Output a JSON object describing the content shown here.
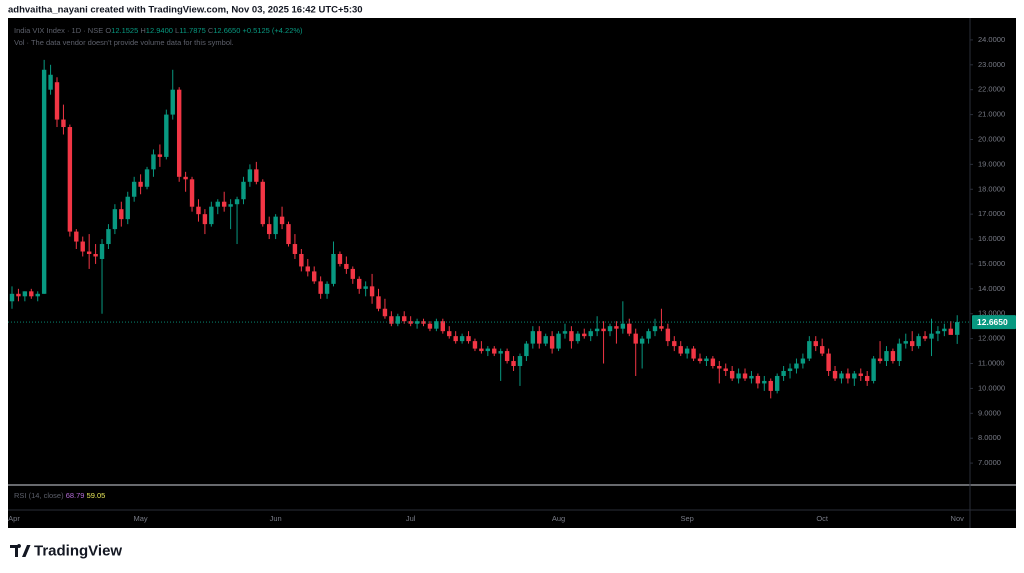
{
  "header": "adhvaitha_nayani created with TradingView.com, Nov 03, 2025 16:42 UTC+5:30",
  "footer": {
    "brand": "TradingView"
  },
  "chart_data": {
    "type": "candlestick",
    "legend": {
      "symbol": "India VIX Index · 1D · NSE",
      "fields": [
        {
          "key": "O",
          "label": "12.1525"
        },
        {
          "key": "H",
          "label": "12.9400"
        },
        {
          "key": "L",
          "label": "11.7875"
        },
        {
          "key": "C",
          "label": "12.6650"
        }
      ],
      "change": "+0.5125 (+4.22%)",
      "volume_note": "Vol · The data vendor doesn't provide volume data for this symbol."
    },
    "up_color": "#089981",
    "down_color": "#f23645",
    "price_tag": {
      "value": 12.665,
      "label": "12.6650"
    },
    "ylim": [
      6.12,
      24.88
    ],
    "yticks": [
      {
        "value": 24,
        "label": "24.0000"
      },
      {
        "value": 23,
        "label": "23.0000"
      },
      {
        "value": 22,
        "label": "22.0000"
      },
      {
        "value": 21,
        "label": "21.0000"
      },
      {
        "value": 20,
        "label": "20.0000"
      },
      {
        "value": 19,
        "label": "19.0000"
      },
      {
        "value": 18,
        "label": "18.0000"
      },
      {
        "value": 17,
        "label": "17.0000"
      },
      {
        "value": 16,
        "label": "16.0000"
      },
      {
        "value": 15,
        "label": "15.0000"
      },
      {
        "value": 14,
        "label": "14.0000"
      },
      {
        "value": 13,
        "label": "13.0000"
      },
      {
        "value": 12,
        "label": "12.0000"
      },
      {
        "value": 11,
        "label": "11.0000"
      },
      {
        "value": 10,
        "label": "10.0000"
      },
      {
        "value": 9,
        "label": "9.0000"
      },
      {
        "value": 8,
        "label": "8.0000"
      },
      {
        "value": 7,
        "label": "7.0000"
      }
    ],
    "grid": false,
    "rsi": {
      "title": "RSI (14, close)",
      "values": [
        68.79,
        59.05
      ],
      "colors": [
        "#b36bd6",
        "#e8e85a"
      ]
    },
    "categories": [
      "Apr",
      null,
      null,
      null,
      null,
      null,
      null,
      null,
      null,
      null,
      null,
      null,
      null,
      null,
      null,
      null,
      null,
      null,
      null,
      null,
      "May",
      null,
      null,
      null,
      null,
      null,
      null,
      null,
      null,
      null,
      null,
      null,
      null,
      null,
      null,
      null,
      null,
      null,
      null,
      null,
      null,
      "Jun",
      null,
      null,
      null,
      null,
      null,
      null,
      null,
      null,
      null,
      null,
      null,
      null,
      null,
      null,
      null,
      null,
      null,
      null,
      null,
      null,
      "Jul",
      null,
      null,
      null,
      null,
      null,
      null,
      null,
      null,
      null,
      null,
      null,
      null,
      null,
      null,
      null,
      null,
      null,
      null,
      null,
      null,
      null,
      null,
      "Aug",
      null,
      null,
      null,
      null,
      null,
      null,
      null,
      null,
      null,
      null,
      null,
      null,
      null,
      null,
      null,
      null,
      null,
      null,
      null,
      "Sep",
      null,
      null,
      null,
      null,
      null,
      null,
      null,
      null,
      null,
      null,
      null,
      null,
      null,
      null,
      null,
      null,
      null,
      null,
      null,
      null,
      "Oct",
      null,
      null,
      null,
      null,
      null,
      null,
      null,
      null,
      null,
      null,
      null,
      null,
      null,
      null,
      null,
      null,
      null,
      null,
      null,
      null,
      "Nov"
    ],
    "ohlc": [
      [
        13.5,
        14.1,
        13.2,
        13.8
      ],
      [
        13.8,
        14.0,
        13.5,
        13.7
      ],
      [
        13.7,
        13.9,
        13.5,
        13.9
      ],
      [
        13.9,
        14.0,
        13.6,
        13.7
      ],
      [
        13.7,
        13.9,
        13.5,
        13.8
      ],
      [
        13.8,
        23.2,
        13.8,
        22.8
      ],
      [
        22.0,
        23.0,
        21.8,
        22.6
      ],
      [
        22.3,
        22.5,
        20.5,
        20.8
      ],
      [
        20.8,
        21.4,
        20.2,
        20.5
      ],
      [
        20.5,
        20.6,
        16.1,
        16.3
      ],
      [
        16.3,
        16.4,
        15.6,
        15.9
      ],
      [
        15.9,
        16.1,
        15.3,
        15.5
      ],
      [
        15.5,
        16.2,
        14.8,
        15.4
      ],
      [
        15.4,
        15.8,
        15.0,
        15.3
      ],
      [
        15.2,
        16.0,
        13.0,
        15.8
      ],
      [
        15.8,
        16.6,
        15.6,
        16.4
      ],
      [
        16.4,
        17.4,
        16.2,
        17.2
      ],
      [
        17.2,
        17.5,
        16.5,
        16.8
      ],
      [
        16.8,
        17.9,
        16.6,
        17.7
      ],
      [
        17.7,
        18.5,
        17.5,
        18.3
      ],
      [
        18.3,
        18.6,
        17.8,
        18.1
      ],
      [
        18.1,
        18.9,
        18.0,
        18.8
      ],
      [
        18.8,
        19.6,
        18.5,
        19.4
      ],
      [
        19.4,
        19.8,
        18.9,
        19.3
      ],
      [
        19.3,
        21.2,
        19.2,
        21.0
      ],
      [
        21.0,
        22.8,
        20.8,
        22.0
      ],
      [
        22.0,
        22.1,
        18.3,
        18.5
      ],
      [
        18.5,
        18.7,
        17.9,
        18.4
      ],
      [
        18.4,
        18.5,
        17.1,
        17.3
      ],
      [
        17.3,
        17.6,
        16.7,
        17.0
      ],
      [
        17.0,
        17.2,
        16.2,
        16.6
      ],
      [
        16.6,
        17.5,
        16.5,
        17.3
      ],
      [
        17.3,
        17.6,
        17.0,
        17.5
      ],
      [
        17.5,
        17.9,
        17.1,
        17.3
      ],
      [
        17.3,
        17.6,
        16.4,
        17.4
      ],
      [
        17.4,
        17.7,
        15.8,
        17.6
      ],
      [
        17.6,
        18.5,
        17.4,
        18.3
      ],
      [
        18.3,
        19.0,
        18.1,
        18.8
      ],
      [
        18.8,
        19.1,
        18.2,
        18.3
      ],
      [
        18.3,
        18.4,
        16.5,
        16.6
      ],
      [
        16.6,
        16.9,
        16.0,
        16.2
      ],
      [
        16.2,
        17.0,
        16.0,
        16.9
      ],
      [
        16.9,
        17.3,
        16.4,
        16.6
      ],
      [
        16.6,
        16.7,
        15.7,
        15.8
      ],
      [
        15.8,
        16.2,
        15.2,
        15.4
      ],
      [
        15.4,
        15.6,
        14.7,
        14.9
      ],
      [
        14.9,
        15.2,
        14.5,
        14.7
      ],
      [
        14.7,
        14.9,
        14.2,
        14.3
      ],
      [
        14.3,
        14.5,
        13.6,
        13.8
      ],
      [
        13.8,
        14.3,
        13.6,
        14.2
      ],
      [
        14.2,
        15.9,
        14.1,
        15.4
      ],
      [
        15.4,
        15.5,
        14.9,
        15.0
      ],
      [
        15.0,
        15.3,
        14.6,
        14.8
      ],
      [
        14.8,
        14.9,
        14.2,
        14.4
      ],
      [
        14.4,
        14.5,
        13.8,
        14.0
      ],
      [
        14.0,
        14.3,
        13.7,
        14.1
      ],
      [
        14.1,
        14.6,
        13.4,
        13.7
      ],
      [
        13.7,
        14.0,
        13.1,
        13.2
      ],
      [
        13.2,
        13.6,
        12.8,
        12.9
      ],
      [
        12.9,
        13.1,
        12.5,
        12.6
      ],
      [
        12.6,
        13.0,
        12.5,
        12.9
      ],
      [
        12.9,
        13.1,
        12.6,
        12.7
      ],
      [
        12.7,
        12.9,
        12.5,
        12.6
      ],
      [
        12.6,
        12.8,
        12.4,
        12.7
      ],
      [
        12.7,
        12.8,
        12.5,
        12.6
      ],
      [
        12.6,
        12.7,
        12.3,
        12.4
      ],
      [
        12.4,
        12.8,
        12.3,
        12.7
      ],
      [
        12.7,
        12.8,
        12.2,
        12.3
      ],
      [
        12.3,
        12.5,
        12.0,
        12.1
      ],
      [
        12.1,
        12.3,
        11.8,
        11.9
      ],
      [
        11.9,
        12.2,
        11.8,
        12.1
      ],
      [
        12.1,
        12.3,
        11.8,
        11.9
      ],
      [
        11.9,
        12.0,
        11.5,
        11.6
      ],
      [
        11.6,
        11.9,
        11.4,
        11.5
      ],
      [
        11.5,
        11.7,
        11.3,
        11.6
      ],
      [
        11.6,
        11.7,
        11.3,
        11.4
      ],
      [
        11.4,
        11.6,
        10.3,
        11.5
      ],
      [
        11.5,
        11.6,
        11.0,
        11.1
      ],
      [
        11.1,
        11.3,
        10.7,
        10.9
      ],
      [
        10.9,
        11.4,
        10.1,
        11.3
      ],
      [
        11.3,
        11.9,
        11.1,
        11.8
      ],
      [
        11.8,
        12.5,
        11.6,
        12.3
      ],
      [
        12.3,
        12.5,
        11.6,
        11.8
      ],
      [
        11.8,
        12.2,
        11.7,
        12.1
      ],
      [
        12.1,
        12.3,
        11.4,
        11.6
      ],
      [
        11.6,
        12.3,
        11.5,
        12.2
      ],
      [
        12.2,
        12.6,
        12.0,
        12.3
      ],
      [
        12.3,
        12.5,
        11.6,
        11.9
      ],
      [
        11.9,
        12.3,
        11.8,
        12.2
      ],
      [
        12.2,
        12.4,
        12.0,
        12.1
      ],
      [
        12.1,
        12.4,
        11.9,
        12.3
      ],
      [
        12.3,
        12.9,
        12.1,
        12.4
      ],
      [
        12.4,
        12.7,
        11.0,
        12.3
      ],
      [
        12.3,
        12.6,
        12.1,
        12.5
      ],
      [
        12.5,
        12.7,
        11.8,
        12.4
      ],
      [
        12.4,
        13.5,
        12.2,
        12.6
      ],
      [
        12.6,
        12.8,
        12.1,
        12.2
      ],
      [
        12.2,
        12.4,
        10.5,
        11.8
      ],
      [
        11.8,
        12.1,
        10.8,
        12.0
      ],
      [
        12.0,
        12.4,
        11.8,
        12.3
      ],
      [
        12.3,
        12.8,
        12.1,
        12.5
      ],
      [
        12.5,
        13.2,
        12.3,
        12.4
      ],
      [
        12.4,
        12.6,
        11.7,
        11.9
      ],
      [
        11.9,
        12.1,
        11.5,
        11.7
      ],
      [
        11.7,
        11.9,
        11.3,
        11.4
      ],
      [
        11.4,
        11.7,
        11.2,
        11.6
      ],
      [
        11.6,
        11.7,
        11.1,
        11.2
      ],
      [
        11.2,
        11.4,
        11.0,
        11.1
      ],
      [
        11.1,
        11.3,
        10.9,
        11.2
      ],
      [
        11.2,
        11.3,
        10.8,
        10.9
      ],
      [
        10.9,
        11.1,
        10.2,
        10.8
      ],
      [
        10.8,
        11.0,
        10.5,
        10.7
      ],
      [
        10.7,
        10.9,
        10.3,
        10.4
      ],
      [
        10.4,
        10.8,
        10.2,
        10.6
      ],
      [
        10.6,
        10.8,
        10.3,
        10.4
      ],
      [
        10.4,
        10.7,
        10.2,
        10.5
      ],
      [
        10.5,
        10.6,
        10.0,
        10.2
      ],
      [
        10.2,
        10.5,
        9.9,
        10.3
      ],
      [
        10.3,
        10.4,
        9.6,
        9.9
      ],
      [
        9.9,
        10.6,
        9.8,
        10.5
      ],
      [
        10.5,
        10.9,
        10.3,
        10.7
      ],
      [
        10.7,
        11.0,
        10.4,
        10.8
      ],
      [
        10.8,
        11.2,
        10.6,
        11.0
      ],
      [
        11.0,
        11.4,
        10.8,
        11.2
      ],
      [
        11.2,
        12.1,
        11.1,
        11.9
      ],
      [
        11.9,
        12.1,
        11.5,
        11.7
      ],
      [
        11.7,
        12.0,
        11.3,
        11.4
      ],
      [
        11.4,
        11.6,
        10.5,
        10.7
      ],
      [
        10.7,
        10.9,
        10.3,
        10.4
      ],
      [
        10.4,
        10.7,
        10.2,
        10.6
      ],
      [
        10.6,
        10.8,
        10.2,
        10.4
      ],
      [
        10.4,
        10.7,
        10.1,
        10.6
      ],
      [
        10.6,
        10.8,
        10.3,
        10.5
      ],
      [
        10.5,
        10.7,
        10.1,
        10.3
      ],
      [
        10.3,
        11.3,
        10.2,
        11.2
      ],
      [
        11.2,
        11.9,
        11.0,
        11.1
      ],
      [
        11.1,
        11.7,
        10.9,
        11.5
      ],
      [
        11.5,
        11.6,
        11.0,
        11.1
      ],
      [
        11.1,
        12.0,
        10.9,
        11.8
      ],
      [
        11.8,
        12.2,
        11.6,
        11.9
      ],
      [
        11.9,
        12.3,
        11.5,
        11.7
      ],
      [
        11.7,
        12.2,
        11.6,
        12.1
      ],
      [
        12.1,
        12.3,
        11.9,
        12.0
      ],
      [
        12.0,
        12.8,
        11.3,
        12.2
      ],
      [
        12.2,
        12.5,
        11.9,
        12.3
      ],
      [
        12.3,
        12.6,
        12.1,
        12.4
      ],
      [
        12.4,
        12.7,
        12.2,
        12.15
      ],
      [
        12.1525,
        12.94,
        11.7875,
        12.665
      ]
    ]
  }
}
